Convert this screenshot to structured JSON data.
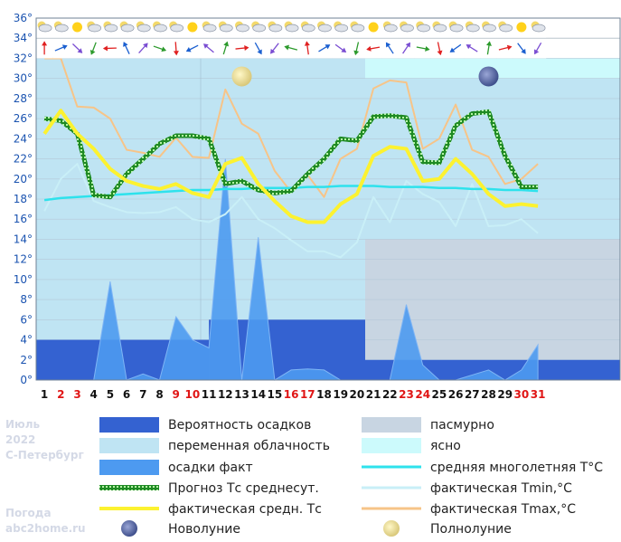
{
  "chart_data": {
    "type": "line",
    "month": "Июль",
    "year": "2022",
    "city": "С-Петербург",
    "site_line1": "Погода",
    "site_line2": "abc2home.ru",
    "days": [
      1,
      2,
      3,
      4,
      5,
      6,
      7,
      8,
      9,
      10,
      11,
      12,
      13,
      14,
      15,
      16,
      17,
      18,
      19,
      20,
      21,
      22,
      23,
      24,
      25,
      26,
      27,
      28,
      29,
      30,
      31
    ],
    "weekend_days": [
      2,
      3,
      9,
      10,
      16,
      17,
      23,
      24,
      30,
      31
    ],
    "ylim": [
      0,
      36
    ],
    "yticks": [
      "0°",
      "2°",
      "4°",
      "6°",
      "8°",
      "10°",
      "12°",
      "14°",
      "16°",
      "18°",
      "20°",
      "22°",
      "24°",
      "26°",
      "28°",
      "30°",
      "32°",
      "34°",
      "36°"
    ],
    "background_periods": [
      {
        "from_day": 1,
        "to_day": 20.5,
        "condition": "переменная облачность"
      },
      {
        "from_day": 20.5,
        "to_day": 31,
        "condition": "ясно / пасмурно"
      }
    ],
    "precip_probability": [
      {
        "from_day": 1,
        "to_day": 11,
        "value": 4
      },
      {
        "from_day": 11,
        "to_day": 20.5,
        "value": 6
      },
      {
        "from_day": 20.5,
        "to_day": 31,
        "value": 2
      }
    ],
    "series": [
      {
        "name": "осадки факт",
        "values": [
          0,
          0,
          0,
          0,
          9.8,
          0,
          0.6,
          0,
          6.3,
          4,
          3.2,
          22,
          0,
          14.2,
          0,
          1,
          1.1,
          1,
          0,
          0,
          0,
          0,
          7.5,
          1.5,
          0,
          0,
          0.5,
          1,
          0,
          1,
          3.5
        ]
      },
      {
        "name": "Прогноз Тс среднесут.",
        "values": [
          26,
          25.8,
          24.5,
          18.4,
          18.2,
          20.5,
          22,
          23.5,
          24.3,
          24.3,
          24,
          19.5,
          19.8,
          18.9,
          18.6,
          18.8,
          20.5,
          22,
          24,
          23.8,
          26.2,
          26.3,
          26.1,
          21.7,
          21.6,
          25.3,
          26.5,
          26.7,
          22.3,
          19.2,
          19.2
        ]
      },
      {
        "name": "фактическая средн. Тс",
        "values": [
          24.5,
          26.8,
          24.5,
          23,
          21,
          19.8,
          19.3,
          19,
          19.5,
          18.6,
          18.2,
          21.5,
          22.1,
          19.5,
          17.8,
          16.3,
          15.7,
          15.7,
          17.5,
          18.5,
          22.3,
          23.2,
          23,
          19.8,
          20,
          22,
          20.5,
          18.5,
          17.3,
          17.5,
          17.3
        ]
      },
      {
        "name": "средняя многолетняя T°C",
        "values": [
          17.9,
          18.1,
          18.2,
          18.3,
          18.4,
          18.5,
          18.6,
          18.7,
          18.8,
          18.9,
          18.9,
          19,
          19,
          19.1,
          19.1,
          19.1,
          19.2,
          19.2,
          19.3,
          19.3,
          19.3,
          19.2,
          19.2,
          19.2,
          19.1,
          19.1,
          19,
          19,
          18.9,
          18.9,
          18.8
        ]
      },
      {
        "name": "фактическая Tmin,°C",
        "values": [
          16.8,
          20,
          21.5,
          17.8,
          17.2,
          16.7,
          16.6,
          16.7,
          17.2,
          16,
          15.7,
          16.5,
          18.2,
          16,
          15.1,
          13.9,
          12.8,
          12.8,
          12.2,
          13.7,
          18.2,
          15.7,
          19.8,
          18.5,
          17.7,
          15.3,
          19.5,
          15.3,
          15.4,
          16,
          14.6
        ]
      },
      {
        "name": "фактическая Tmax,°C",
        "values": [
          32,
          32,
          27.2,
          27.1,
          26,
          22.9,
          22.6,
          22.2,
          24.1,
          22.2,
          22.1,
          28.9,
          25.5,
          24.5,
          20.8,
          18.7,
          20.4,
          18.2,
          22,
          23,
          29,
          29.8,
          29.6,
          23,
          24,
          27.4,
          22.9,
          22.2,
          19.5,
          20,
          21.5
        ]
      }
    ],
    "new_moon_day": 28,
    "full_moon_day": 13,
    "legend": [
      {
        "label": "Вероятность осадков",
        "color": "#3462d1",
        "kind": "rect"
      },
      {
        "label": "пасмурно",
        "color": "#c8d5e2",
        "kind": "rect"
      },
      {
        "label": "переменная облачность",
        "color": "#bfe4f3",
        "kind": "rect"
      },
      {
        "label": "ясно",
        "color": "#ccfafc",
        "kind": "rect"
      },
      {
        "label": "осадки факт",
        "color": "#4d9af0",
        "kind": "rect"
      },
      {
        "label": "средняя многолетняя T°C",
        "color": "#2ee2ec",
        "kind": "line"
      },
      {
        "label": "Прогноз Тс среднесут.",
        "color": "#168c1c",
        "kind": "dotted"
      },
      {
        "label": "фактическая Tmin,°C",
        "color": "#c9eff7",
        "kind": "line"
      },
      {
        "label": "фактическая средн. Тс",
        "color": "#fcf230",
        "kind": "line"
      },
      {
        "label": "фактическая Tmax,°C",
        "color": "#f7c488",
        "kind": "line"
      },
      {
        "label": "Новолуние",
        "color": "#5c6ea8",
        "kind": "moon"
      },
      {
        "label": "Полнолуние",
        "color": "#f0e59c",
        "kind": "moon"
      }
    ]
  }
}
